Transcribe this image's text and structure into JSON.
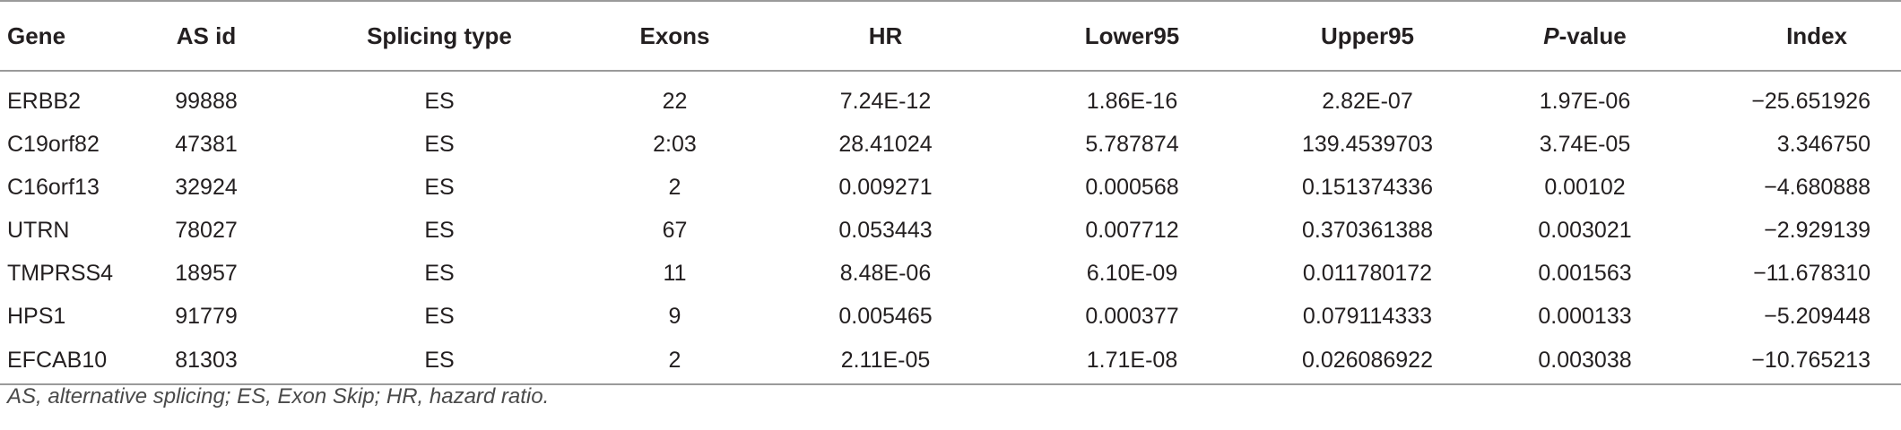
{
  "table": {
    "headers": {
      "gene": "Gene",
      "as_id": "AS id",
      "splicing_type": "Splicing type",
      "exons": "Exons",
      "hr": "HR",
      "lower95": "Lower95",
      "upper95": "Upper95",
      "pvalue_italic": "P",
      "pvalue_rest": "-value",
      "index": "Index"
    },
    "rows": [
      {
        "gene": "ERBB2",
        "as_id": "99888",
        "splicing_type": "ES",
        "exons": "22",
        "hr": "7.24E-12",
        "lower95": "1.86E-16",
        "upper95": "2.82E-07",
        "pvalue": "1.97E-06",
        "index": "−25.651926"
      },
      {
        "gene": "C19orf82",
        "as_id": "47381",
        "splicing_type": "ES",
        "exons": "2:03",
        "hr": "28.41024",
        "lower95": "5.787874",
        "upper95": "139.4539703",
        "pvalue": "3.74E-05",
        "index": "3.346750"
      },
      {
        "gene": "C16orf13",
        "as_id": "32924",
        "splicing_type": "ES",
        "exons": "2",
        "hr": "0.009271",
        "lower95": "0.000568",
        "upper95": "0.151374336",
        "pvalue": "0.00102",
        "index": "−4.680888"
      },
      {
        "gene": "UTRN",
        "as_id": "78027",
        "splicing_type": "ES",
        "exons": "67",
        "hr": "0.053443",
        "lower95": "0.007712",
        "upper95": "0.370361388",
        "pvalue": "0.003021",
        "index": "−2.929139"
      },
      {
        "gene": "TMPRSS4",
        "as_id": "18957",
        "splicing_type": "ES",
        "exons": "11",
        "hr": "8.48E-06",
        "lower95": "6.10E-09",
        "upper95": "0.011780172",
        "pvalue": "0.001563",
        "index": "−11.678310"
      },
      {
        "gene": "HPS1",
        "as_id": "91779",
        "splicing_type": "ES",
        "exons": "9",
        "hr": "0.005465",
        "lower95": "0.000377",
        "upper95": "0.079114333",
        "pvalue": "0.000133",
        "index": "−5.209448"
      },
      {
        "gene": "EFCAB10",
        "as_id": "81303",
        "splicing_type": "ES",
        "exons": "2",
        "hr": "2.11E-05",
        "lower95": "1.71E-08",
        "upper95": "0.026086922",
        "pvalue": "0.003038",
        "index": "−10.765213"
      }
    ]
  },
  "footnote": "AS, alternative splicing; ES, Exon Skip; HR, hazard ratio."
}
